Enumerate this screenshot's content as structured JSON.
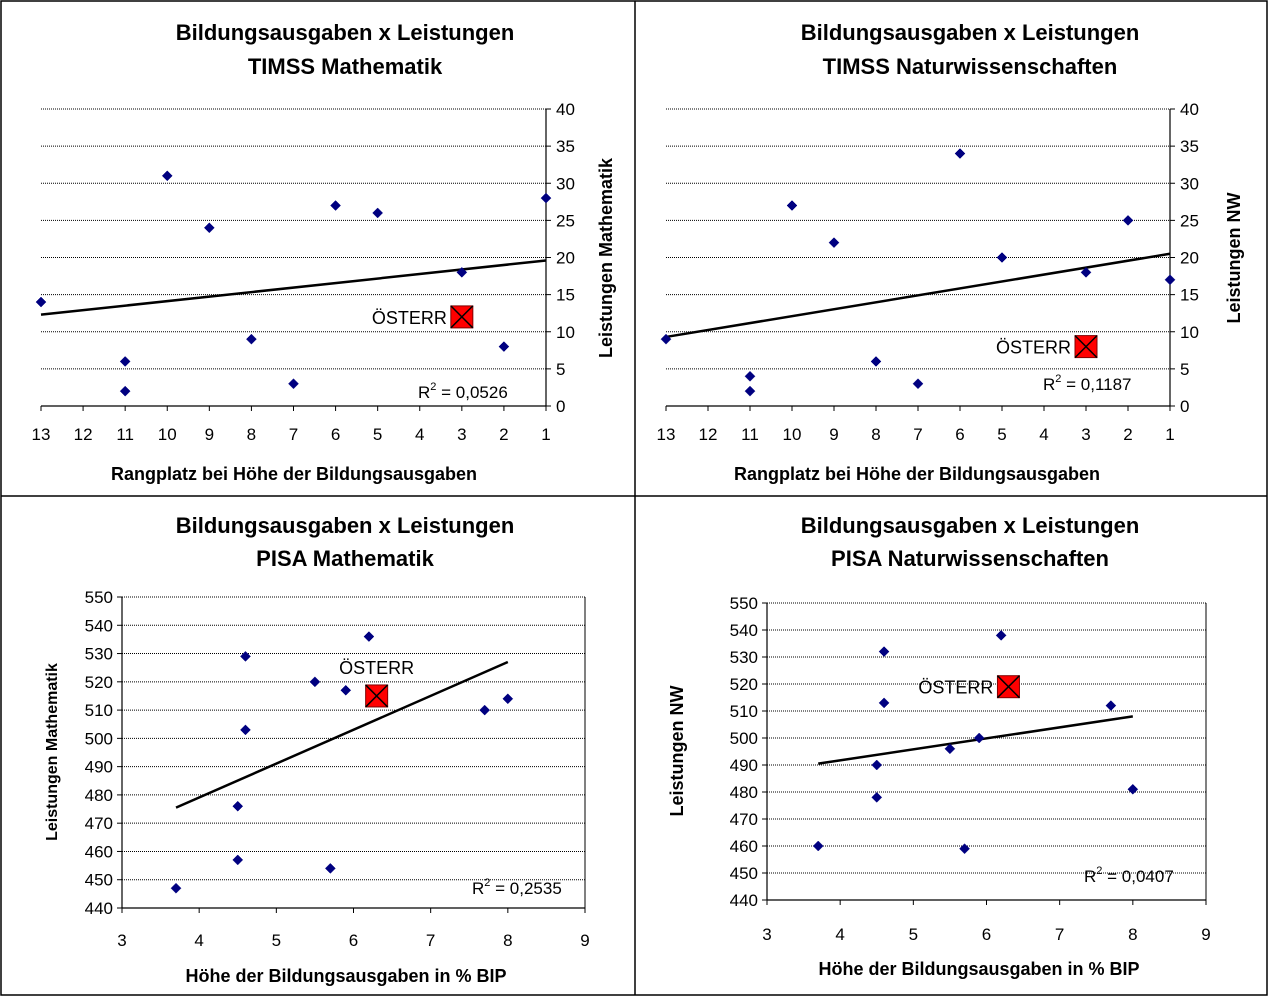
{
  "chart_data": [
    {
      "type": "scatter",
      "title": [
        "Bildungsausgaben x Leistungen",
        "TIMSS Mathematik"
      ],
      "xlabel": "Rangplatz bei Höhe der Bildungsausgaben",
      "ylabel": "Leistungen Mathematik",
      "xlim": [
        13,
        1
      ],
      "ylim": [
        0,
        40
      ],
      "xticks": [
        "13",
        "12",
        "11",
        "10",
        "9",
        "8",
        "7",
        "6",
        "5",
        "4",
        "3",
        "2",
        "1"
      ],
      "yticks": [
        "0",
        "5",
        "10",
        "15",
        "20",
        "25",
        "30",
        "35",
        "40"
      ],
      "grid": true,
      "y_axis_side": "right",
      "x": [
        13,
        11,
        11,
        10,
        9,
        8,
        7,
        6,
        5,
        3,
        2,
        1
      ],
      "y": [
        14,
        6,
        2,
        31,
        24,
        9,
        3,
        27,
        26,
        18,
        8,
        28
      ],
      "highlight": {
        "label": "ÖSTERR",
        "x": 3,
        "y": 12
      },
      "trendline": {
        "x": [
          13,
          1
        ],
        "y": [
          12.3,
          19.6
        ]
      },
      "r2_label": "= 0,0526"
    },
    {
      "type": "scatter",
      "title": [
        "Bildungsausgaben x Leistungen",
        "TIMSS Naturwissenschaften"
      ],
      "xlabel": "Rangplatz bei Höhe der Bildungsausgaben",
      "ylabel": "Leistungen NW",
      "xlim": [
        13,
        1
      ],
      "ylim": [
        0,
        40
      ],
      "xticks": [
        "13",
        "12",
        "11",
        "10",
        "9",
        "8",
        "7",
        "6",
        "5",
        "4",
        "3",
        "2",
        "1"
      ],
      "yticks": [
        "0",
        "5",
        "10",
        "15",
        "20",
        "25",
        "30",
        "35",
        "40"
      ],
      "grid": true,
      "y_axis_side": "right",
      "x": [
        13,
        11,
        11,
        10,
        9,
        8,
        7,
        6,
        5,
        3,
        2,
        1
      ],
      "y": [
        9,
        4,
        2,
        27,
        22,
        6,
        3,
        34,
        20,
        18,
        25,
        17
      ],
      "highlight": {
        "label": "ÖSTERR",
        "x": 3,
        "y": 8
      },
      "trendline": {
        "x": [
          13,
          1
        ],
        "y": [
          9.3,
          20.5
        ]
      },
      "r2_label": "= 0,1187"
    },
    {
      "type": "scatter",
      "title": [
        "Bildungsausgaben x Leistungen",
        "PISA Mathematik"
      ],
      "xlabel": "Höhe der Bildungsausgaben in % BIP",
      "ylabel": "Leistungen Mathematik",
      "xlim": [
        3,
        9
      ],
      "ylim": [
        440,
        550
      ],
      "xticks": [
        "3",
        "4",
        "5",
        "6",
        "7",
        "8",
        "9"
      ],
      "yticks": [
        "440",
        "450",
        "460",
        "470",
        "480",
        "490",
        "500",
        "510",
        "520",
        "530",
        "540",
        "550"
      ],
      "grid": true,
      "y_axis_side": "left",
      "x": [
        3.7,
        4.5,
        4.5,
        4.6,
        4.6,
        5.5,
        5.7,
        5.9,
        6.2,
        7.7,
        8.0
      ],
      "y": [
        447,
        457,
        476,
        503,
        529,
        520,
        454,
        517,
        536,
        510,
        514
      ],
      "highlight": {
        "label": "ÖSTERR",
        "x": 6.3,
        "y": 515
      },
      "trendline": {
        "x": [
          3.7,
          8.0
        ],
        "y": [
          475.5,
          527
        ]
      },
      "r2_label": "= 0,2535"
    },
    {
      "type": "scatter",
      "title": [
        "Bildungsausgaben x Leistungen",
        "PISA Naturwissenschaften"
      ],
      "xlabel": "Höhe der Bildungsausgaben in % BIP",
      "ylabel": "Leistungen NW",
      "xlim": [
        3,
        9
      ],
      "ylim": [
        440,
        550
      ],
      "xticks": [
        "3",
        "4",
        "5",
        "6",
        "7",
        "8",
        "9"
      ],
      "yticks": [
        "440",
        "450",
        "460",
        "470",
        "480",
        "490",
        "500",
        "510",
        "520",
        "530",
        "540",
        "550"
      ],
      "grid": true,
      "y_axis_side": "left",
      "x": [
        3.7,
        4.5,
        4.5,
        4.6,
        4.6,
        5.5,
        5.7,
        5.9,
        6.2,
        7.7,
        8.0
      ],
      "y": [
        460,
        478,
        490,
        513,
        532,
        496,
        459,
        500,
        538,
        512,
        481
      ],
      "highlight": {
        "label": "ÖSTERR",
        "x": 6.3,
        "y": 519
      },
      "trendline": {
        "x": [
          3.7,
          8.0
        ],
        "y": [
          490.5,
          508
        ]
      },
      "r2_label": "= 0,0407"
    }
  ],
  "colors": {
    "marker": "#000080",
    "highlight_fill": "#ff0000",
    "line": "#000000",
    "grid": "#000000",
    "border": "#000000"
  },
  "r2_symbol": "R"
}
